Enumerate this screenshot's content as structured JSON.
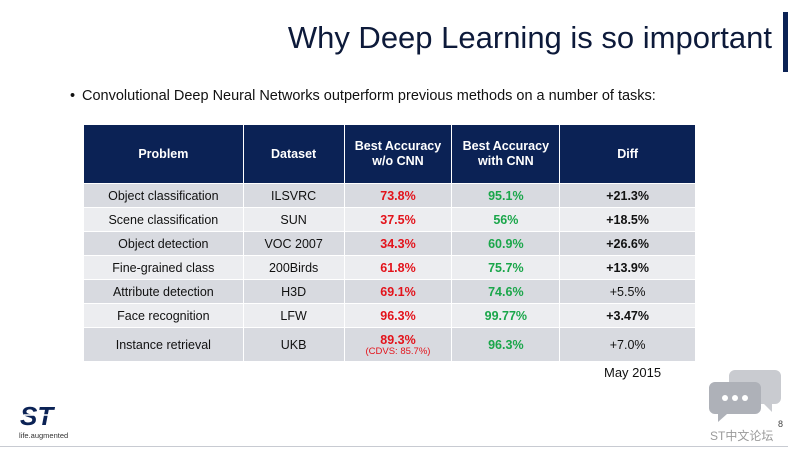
{
  "title": "Why Deep Learning is so important",
  "bullet": {
    "mark": "•",
    "text": "Convolutional Deep Neural Networks outperform previous methods on a number of tasks:"
  },
  "table": {
    "headers": [
      "Problem",
      "Dataset",
      "Best Accuracy w/o CNN",
      "Best Accuracy with CNN",
      "Diff"
    ],
    "header_lines": {
      "h3a": "Best Accuracy",
      "h3b": "w/o CNN",
      "h4a": "Best Accuracy",
      "h4b": "with CNN"
    },
    "rows": [
      {
        "problem": "Object classification",
        "dataset": "ILSVRC",
        "without_cnn": "73.8%",
        "with_cnn": "95.1%",
        "diff": "+21.3%"
      },
      {
        "problem": "Scene classification",
        "dataset": "SUN",
        "without_cnn": "37.5%",
        "with_cnn": "56%",
        "diff": "+18.5%"
      },
      {
        "problem": "Object detection",
        "dataset": "VOC 2007",
        "without_cnn": "34.3%",
        "with_cnn": "60.9%",
        "diff": "+26.6%"
      },
      {
        "problem": "Fine-grained class",
        "dataset": "200Birds",
        "without_cnn": "61.8%",
        "with_cnn": "75.7%",
        "diff": "+13.9%"
      },
      {
        "problem": "Attribute detection",
        "dataset": "H3D",
        "without_cnn": "69.1%",
        "with_cnn": "74.6%",
        "diff": "+5.5%"
      },
      {
        "problem": "Face recognition",
        "dataset": "LFW",
        "without_cnn": "96.3%",
        "with_cnn": "99.77%",
        "diff": "+3.47%"
      },
      {
        "problem": "Instance retrieval",
        "dataset": "UKB",
        "without_cnn": "89.3%",
        "without_cnn_note": "(CDVS: 85.7%)",
        "with_cnn": "96.3%",
        "diff": "+7.0%"
      }
    ]
  },
  "date": "May 2015",
  "footer": {
    "logo_text": "ST",
    "tagline": "life.augmented",
    "page_number": "8",
    "watermark": "ST中文论坛"
  },
  "colors": {
    "header_bg": "#0b2255",
    "negative": "#e3131b",
    "positive": "#1aa64a"
  }
}
